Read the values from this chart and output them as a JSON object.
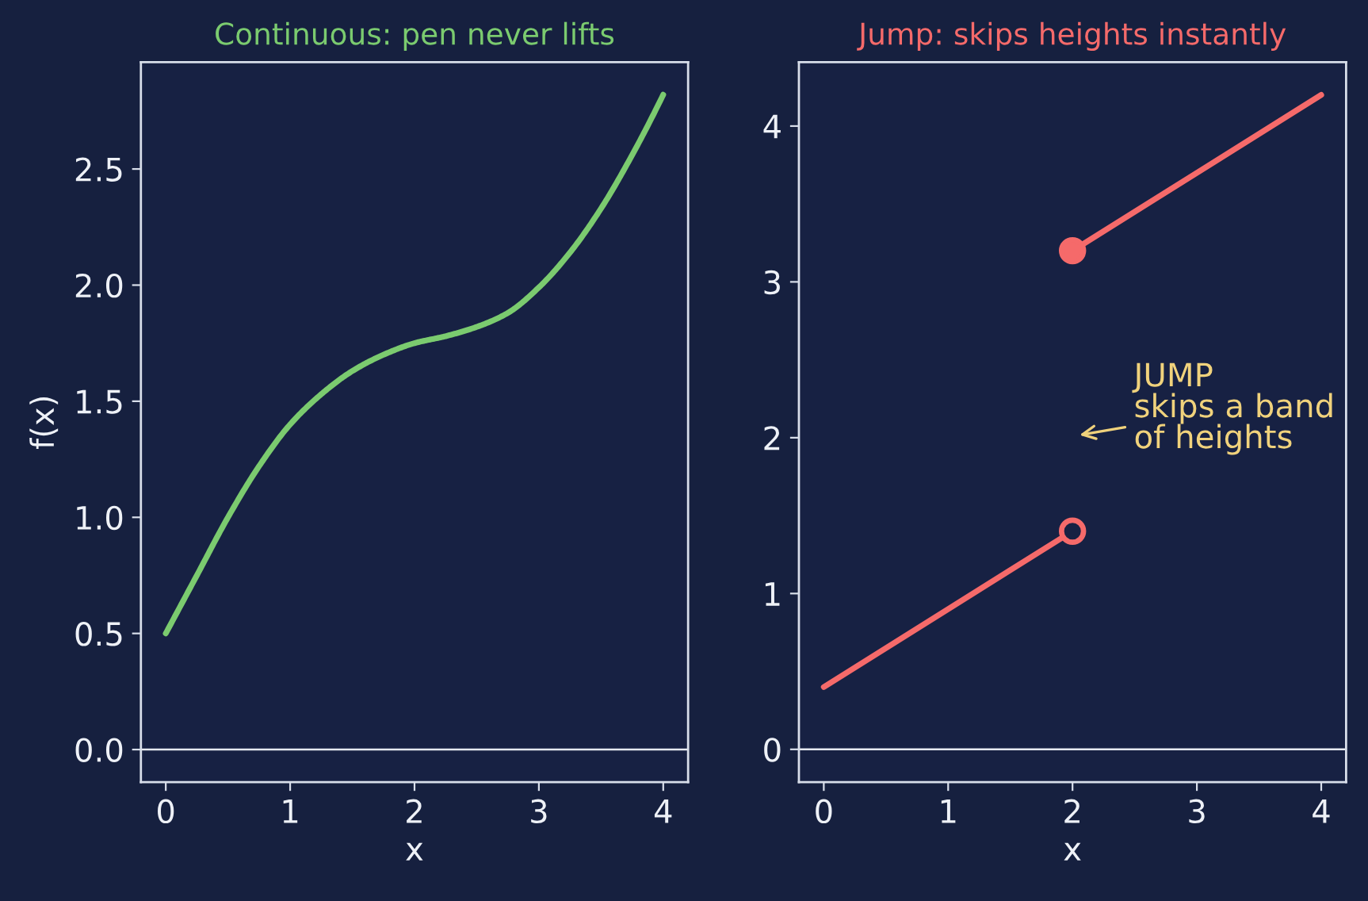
{
  "chart_data": [
    {
      "type": "line",
      "title": "Continuous: pen never lifts",
      "xlabel": "x",
      "ylabel": "f(x)",
      "x": [
        0,
        0.25,
        0.5,
        0.75,
        1.0,
        1.25,
        1.5,
        1.75,
        2.0,
        2.25,
        2.5,
        2.75,
        3.0,
        3.25,
        3.5,
        3.75,
        4.0
      ],
      "series": [
        {
          "color": "#7bcb6f",
          "values": [
            0.5,
            0.75,
            1.0,
            1.22,
            1.4,
            1.53,
            1.63,
            1.7,
            1.75,
            1.78,
            1.82,
            1.88,
            1.99,
            2.14,
            2.33,
            2.56,
            2.82
          ]
        }
      ],
      "xlim": [
        -0.2,
        4.2
      ],
      "ylim": [
        -0.14,
        2.96
      ],
      "xticks": [
        0,
        1,
        2,
        3,
        4
      ],
      "yticks": [
        {
          "value": 0,
          "label": "0.0"
        },
        {
          "value": 0.5,
          "label": "0.5"
        },
        {
          "value": 1,
          "label": "1.0"
        },
        {
          "value": 1.5,
          "label": "1.5"
        },
        {
          "value": 2,
          "label": "2.0"
        },
        {
          "value": 2.5,
          "label": "2.5"
        }
      ],
      "ref_lines": [
        {
          "axis": "y",
          "value": 0,
          "color": "#e6e9f0"
        }
      ],
      "marker": "none",
      "line_style": "solid"
    },
    {
      "type": "line",
      "title": "Jump: skips heights instantly",
      "xlabel": "x",
      "series": [
        {
          "type": "line",
          "x": [
            0,
            2
          ],
          "values": [
            0.4,
            1.4
          ],
          "color": "#f56a6a"
        },
        {
          "type": "line",
          "x": [
            2,
            4
          ],
          "values": [
            3.2,
            4.2
          ],
          "color": "#f56a6a"
        },
        {
          "type": "scatter",
          "x": [
            2
          ],
          "values": [
            1.4
          ],
          "color": "#f56a6a",
          "colors": [
            "#172143"
          ],
          "marker": "circle"
        },
        {
          "type": "scatter",
          "x": [
            2
          ],
          "values": [
            3.2
          ],
          "color": "#f56a6a",
          "marker": "circle"
        }
      ],
      "xlim": [
        -0.2,
        4.2
      ],
      "ylim": [
        -0.21,
        4.41
      ],
      "xticks": [
        0,
        1,
        2,
        3,
        4
      ],
      "yticks": [
        0,
        1,
        2,
        3,
        4
      ],
      "ref_lines": [
        {
          "axis": "y",
          "value": 0,
          "color": "#e6e9f0"
        }
      ],
      "annotations": [
        "JUMP\nskips a band\nof heights"
      ],
      "marker": "none",
      "line_style": "solid"
    }
  ]
}
